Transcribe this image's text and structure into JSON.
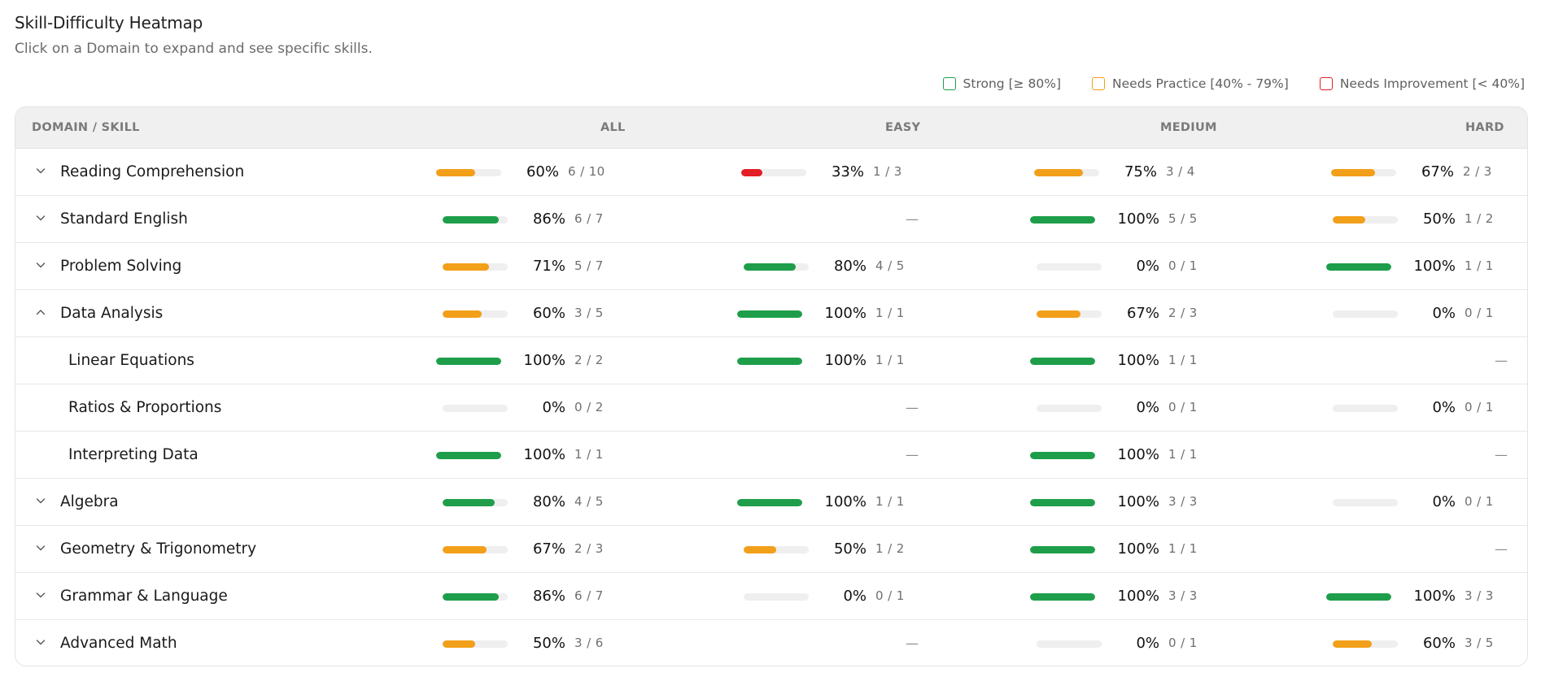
{
  "page": {
    "title": "Skill-Difficulty Heatmap",
    "subtitle": "Click on a Domain to expand and see specific skills."
  },
  "legend": [
    {
      "label": "Strong [≥ 80%]",
      "color": "#1e9e4a"
    },
    {
      "label": "Needs Practice [40% - 79%]",
      "color": "#f29f19"
    },
    {
      "label": "Needs Improvement [< 40%]",
      "color": "#e31e24"
    }
  ],
  "columns": {
    "domain": "DOMAIN / SKILL",
    "all": "ALL",
    "easy": "EASY",
    "medium": "MEDIUM",
    "hard": "HARD"
  },
  "colors": {
    "strong": "#1e9e4a",
    "practice": "#f29f19",
    "improve": "#e31e24",
    "track": "#efefef"
  },
  "rows": [
    {
      "name": "Reading Comprehension",
      "type": "domain",
      "expanded": false,
      "all": {
        "pct": "60%",
        "frac": "6 / 10",
        "value": 60
      },
      "easy": {
        "pct": "33%",
        "frac": "1 / 3",
        "value": 33
      },
      "medium": {
        "pct": "75%",
        "frac": "3 / 4",
        "value": 75
      },
      "hard": {
        "pct": "67%",
        "frac": "2 / 3",
        "value": 67
      }
    },
    {
      "name": "Standard English",
      "type": "domain",
      "expanded": false,
      "all": {
        "pct": "86%",
        "frac": "6 / 7",
        "value": 86
      },
      "easy": {
        "empty": "—"
      },
      "medium": {
        "pct": "100%",
        "frac": "5 / 5",
        "value": 100
      },
      "hard": {
        "pct": "50%",
        "frac": "1 / 2",
        "value": 50
      }
    },
    {
      "name": "Problem Solving",
      "type": "domain",
      "expanded": false,
      "all": {
        "pct": "71%",
        "frac": "5 / 7",
        "value": 71
      },
      "easy": {
        "pct": "80%",
        "frac": "4 / 5",
        "value": 80
      },
      "medium": {
        "pct": "0%",
        "frac": "0 / 1",
        "value": 0
      },
      "hard": {
        "pct": "100%",
        "frac": "1 / 1",
        "value": 100
      }
    },
    {
      "name": "Data Analysis",
      "type": "domain",
      "expanded": true,
      "all": {
        "pct": "60%",
        "frac": "3 / 5",
        "value": 60
      },
      "easy": {
        "pct": "100%",
        "frac": "1 / 1",
        "value": 100
      },
      "medium": {
        "pct": "67%",
        "frac": "2 / 3",
        "value": 67
      },
      "hard": {
        "pct": "0%",
        "frac": "0 / 1",
        "value": 0
      }
    },
    {
      "name": "Linear Equations",
      "type": "skill",
      "all": {
        "pct": "100%",
        "frac": "2 / 2",
        "value": 100
      },
      "easy": {
        "pct": "100%",
        "frac": "1 / 1",
        "value": 100
      },
      "medium": {
        "pct": "100%",
        "frac": "1 / 1",
        "value": 100
      },
      "hard": {
        "empty": "—"
      }
    },
    {
      "name": "Ratios & Proportions",
      "type": "skill",
      "all": {
        "pct": "0%",
        "frac": "0 / 2",
        "value": 0
      },
      "easy": {
        "empty": "—"
      },
      "medium": {
        "pct": "0%",
        "frac": "0 / 1",
        "value": 0
      },
      "hard": {
        "pct": "0%",
        "frac": "0 / 1",
        "value": 0
      }
    },
    {
      "name": "Interpreting Data",
      "type": "skill",
      "all": {
        "pct": "100%",
        "frac": "1 / 1",
        "value": 100
      },
      "easy": {
        "empty": "—"
      },
      "medium": {
        "pct": "100%",
        "frac": "1 / 1",
        "value": 100
      },
      "hard": {
        "empty": "—"
      }
    },
    {
      "name": "Algebra",
      "type": "domain",
      "expanded": false,
      "all": {
        "pct": "80%",
        "frac": "4 / 5",
        "value": 80
      },
      "easy": {
        "pct": "100%",
        "frac": "1 / 1",
        "value": 100
      },
      "medium": {
        "pct": "100%",
        "frac": "3 / 3",
        "value": 100
      },
      "hard": {
        "pct": "0%",
        "frac": "0 / 1",
        "value": 0
      }
    },
    {
      "name": "Geometry & Trigonometry",
      "type": "domain",
      "expanded": false,
      "all": {
        "pct": "67%",
        "frac": "2 / 3",
        "value": 67
      },
      "easy": {
        "pct": "50%",
        "frac": "1 / 2",
        "value": 50
      },
      "medium": {
        "pct": "100%",
        "frac": "1 / 1",
        "value": 100
      },
      "hard": {
        "empty": "—"
      }
    },
    {
      "name": "Grammar & Language",
      "type": "domain",
      "expanded": false,
      "all": {
        "pct": "86%",
        "frac": "6 / 7",
        "value": 86
      },
      "easy": {
        "pct": "0%",
        "frac": "0 / 1",
        "value": 0
      },
      "medium": {
        "pct": "100%",
        "frac": "3 / 3",
        "value": 100
      },
      "hard": {
        "pct": "100%",
        "frac": "3 / 3",
        "value": 100
      }
    },
    {
      "name": "Advanced Math",
      "type": "domain",
      "expanded": false,
      "all": {
        "pct": "50%",
        "frac": "3 / 6",
        "value": 50
      },
      "easy": {
        "empty": "—"
      },
      "medium": {
        "pct": "0%",
        "frac": "0 / 1",
        "value": 0
      },
      "hard": {
        "pct": "60%",
        "frac": "3 / 5",
        "value": 60
      }
    }
  ]
}
